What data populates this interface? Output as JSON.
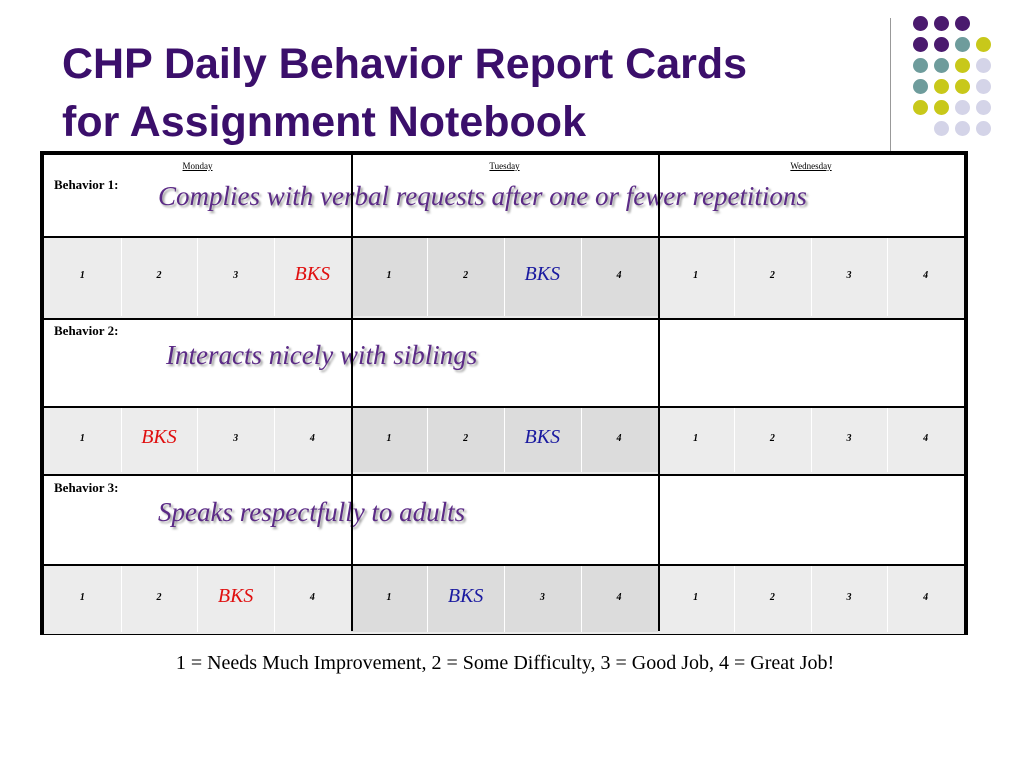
{
  "header": {
    "title_lines": [
      "CHP Daily Behavior Report Cards",
      "for Assignment Notebook"
    ]
  },
  "table": {
    "days": [
      "Monday",
      "Tuesday",
      "Wednesday"
    ],
    "behaviors": [
      {
        "label": "Behavior 1:",
        "description": "Complies with verbal requests  after one or fewer repetitions",
        "ratings": [
          "1",
          "2",
          "3",
          {
            "text": "BKS",
            "color": "#e01010"
          },
          "1",
          "2",
          {
            "text": "BKS",
            "color": "#1a1aa0"
          },
          "4",
          "1",
          "2",
          "3",
          "4"
        ]
      },
      {
        "label": "Behavior 2:",
        "description": "Interacts nicely with siblings",
        "ratings": [
          "1",
          {
            "text": "BKS",
            "color": "#e01010"
          },
          "3",
          "4",
          "1",
          "2",
          {
            "text": "BKS",
            "color": "#1a1aa0"
          },
          "4",
          "1",
          "2",
          "3",
          "4"
        ]
      },
      {
        "label": "Behavior 3:",
        "description": "Speaks respectfully to adults",
        "ratings": [
          "1",
          "2",
          {
            "text": "BKS",
            "color": "#e01010"
          },
          "4",
          "1",
          {
            "text": "BKS",
            "color": "#1a1aa0"
          },
          "3",
          "4",
          "1",
          "2",
          "3",
          "4"
        ]
      }
    ]
  },
  "footer": {
    "legend": "1 = Needs Much Improvement, 2 = Some Difficulty, 3 = Good Job, 4 = Great Job!"
  }
}
